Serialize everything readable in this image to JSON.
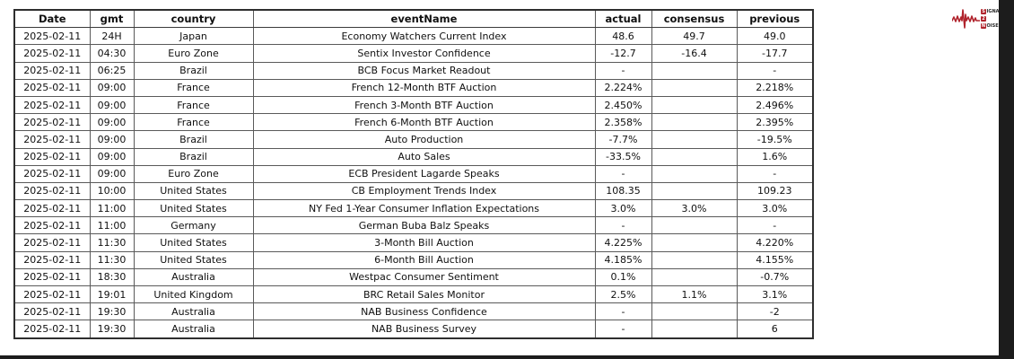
{
  "page": {
    "background": "#ffffff",
    "edge_color": "#1c1c1c"
  },
  "logo": {
    "name": "signal-2-noise",
    "color": "#b0232c",
    "signal_initial": "S",
    "signal_rest": "IGNAL",
    "middle": "2",
    "noise_initial": "N",
    "noise_rest": "OISE"
  },
  "table": {
    "columns": [
      "Date",
      "gmt",
      "country",
      "eventName",
      "actual",
      "consensus",
      "previous"
    ],
    "rows": [
      [
        "2025-02-11",
        "24H",
        "Japan",
        "Economy Watchers Current Index",
        "48.6",
        "49.7",
        "49.0"
      ],
      [
        "2025-02-11",
        "04:30",
        "Euro Zone",
        "Sentix Investor Confidence",
        "-12.7",
        "-16.4",
        "-17.7"
      ],
      [
        "2025-02-11",
        "06:25",
        "Brazil",
        "BCB Focus Market Readout",
        "-",
        "",
        "-"
      ],
      [
        "2025-02-11",
        "09:00",
        "France",
        "French 12-Month BTF Auction",
        "2.224%",
        "",
        "2.218%"
      ],
      [
        "2025-02-11",
        "09:00",
        "France",
        "French 3-Month BTF Auction",
        "2.450%",
        "",
        "2.496%"
      ],
      [
        "2025-02-11",
        "09:00",
        "France",
        "French 6-Month BTF Auction",
        "2.358%",
        "",
        "2.395%"
      ],
      [
        "2025-02-11",
        "09:00",
        "Brazil",
        "Auto Production",
        "-7.7%",
        "",
        "-19.5%"
      ],
      [
        "2025-02-11",
        "09:00",
        "Brazil",
        "Auto Sales",
        "-33.5%",
        "",
        "1.6%"
      ],
      [
        "2025-02-11",
        "09:00",
        "Euro Zone",
        "ECB President Lagarde Speaks",
        "-",
        "",
        "-"
      ],
      [
        "2025-02-11",
        "10:00",
        "United States",
        "CB Employment Trends Index",
        "108.35",
        "",
        "109.23"
      ],
      [
        "2025-02-11",
        "11:00",
        "United States",
        "NY Fed 1-Year Consumer Inflation Expectations",
        "3.0%",
        "3.0%",
        "3.0%"
      ],
      [
        "2025-02-11",
        "11:00",
        "Germany",
        "German Buba Balz Speaks",
        "-",
        "",
        "-"
      ],
      [
        "2025-02-11",
        "11:30",
        "United States",
        "3-Month Bill Auction",
        "4.225%",
        "",
        "4.220%"
      ],
      [
        "2025-02-11",
        "11:30",
        "United States",
        "6-Month Bill Auction",
        "4.185%",
        "",
        "4.155%"
      ],
      [
        "2025-02-11",
        "18:30",
        "Australia",
        "Westpac Consumer Sentiment",
        "0.1%",
        "",
        "-0.7%"
      ],
      [
        "2025-02-11",
        "19:01",
        "United Kingdom",
        "BRC Retail Sales Monitor",
        "2.5%",
        "1.1%",
        "3.1%"
      ],
      [
        "2025-02-11",
        "19:30",
        "Australia",
        "NAB Business Confidence",
        "-",
        "",
        "-2"
      ],
      [
        "2025-02-11",
        "19:30",
        "Australia",
        "NAB Business Survey",
        "-",
        "",
        "6"
      ]
    ]
  }
}
